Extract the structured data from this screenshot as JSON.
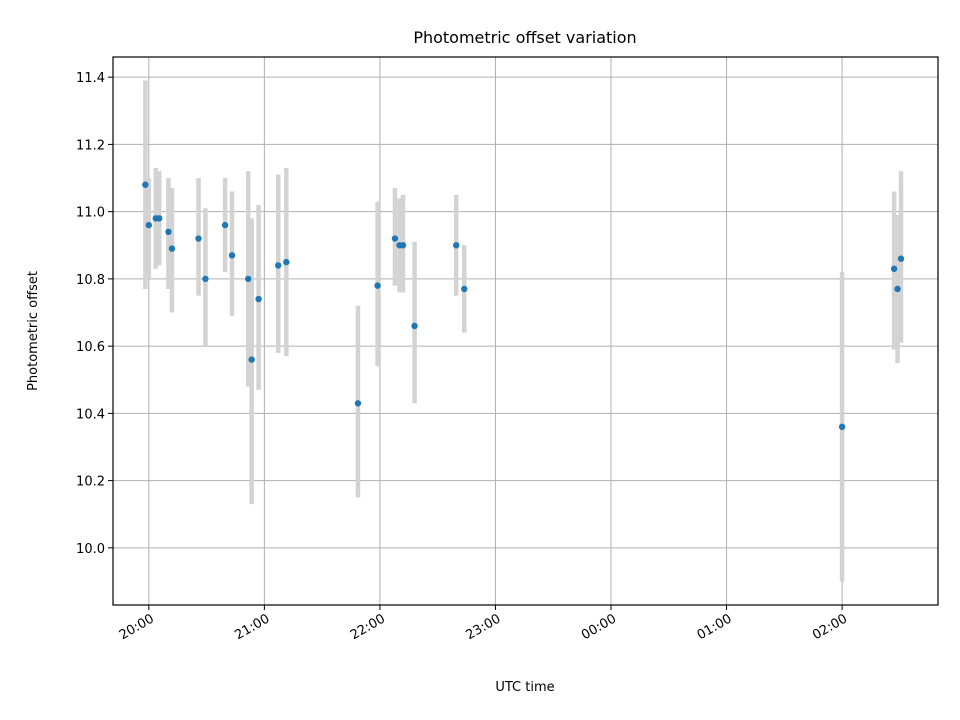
{
  "chart_data": {
    "type": "scatter",
    "title": "Photometric offset variation",
    "xlabel": "UTC time",
    "ylabel": "Photometric offset",
    "x_tick_labels": [
      "20:00",
      "21:00",
      "22:00",
      "23:00",
      "00:00",
      "01:00",
      "02:00"
    ],
    "x_ticks_hours": [
      0,
      1,
      2,
      3,
      4,
      5,
      6
    ],
    "y_ticks": [
      10.0,
      10.2,
      10.4,
      10.6,
      10.8,
      11.0,
      11.2,
      11.4
    ],
    "y_tick_labels": [
      "10.0",
      "10.2",
      "10.4",
      "10.6",
      "10.8",
      "11.0",
      "11.2",
      "11.4"
    ],
    "xlim_hours": [
      -0.31,
      6.83
    ],
    "ylim": [
      9.83,
      11.46
    ],
    "x_axis_start": "20:00 UTC",
    "grid": true,
    "marker_color": "#1f77b4",
    "errorbar_color": "#d3d3d3",
    "points": [
      {
        "t": -0.03,
        "y": 11.08,
        "lo": 10.77,
        "hi": 11.39
      },
      {
        "t": 0.0,
        "y": 10.96,
        "lo": 10.8,
        "hi": 11.1
      },
      {
        "t": 0.06,
        "y": 10.98,
        "lo": 10.83,
        "hi": 11.13
      },
      {
        "t": 0.09,
        "y": 10.98,
        "lo": 10.84,
        "hi": 11.12
      },
      {
        "t": 0.17,
        "y": 10.94,
        "lo": 10.77,
        "hi": 11.1
      },
      {
        "t": 0.2,
        "y": 10.89,
        "lo": 10.7,
        "hi": 11.07
      },
      {
        "t": 0.43,
        "y": 10.92,
        "lo": 10.75,
        "hi": 11.1
      },
      {
        "t": 0.49,
        "y": 10.8,
        "lo": 10.6,
        "hi": 11.01
      },
      {
        "t": 0.66,
        "y": 10.96,
        "lo": 10.82,
        "hi": 11.1
      },
      {
        "t": 0.72,
        "y": 10.87,
        "lo": 10.69,
        "hi": 11.06
      },
      {
        "t": 0.86,
        "y": 10.8,
        "lo": 10.48,
        "hi": 11.12
      },
      {
        "t": 0.89,
        "y": 10.56,
        "lo": 10.13,
        "hi": 10.98
      },
      {
        "t": 0.95,
        "y": 10.74,
        "lo": 10.47,
        "hi": 11.02
      },
      {
        "t": 1.12,
        "y": 10.84,
        "lo": 10.58,
        "hi": 11.11
      },
      {
        "t": 1.19,
        "y": 10.85,
        "lo": 10.57,
        "hi": 11.13
      },
      {
        "t": 1.81,
        "y": 10.43,
        "lo": 10.15,
        "hi": 10.72
      },
      {
        "t": 1.98,
        "y": 10.78,
        "lo": 10.54,
        "hi": 11.03
      },
      {
        "t": 2.13,
        "y": 10.92,
        "lo": 10.78,
        "hi": 11.07
      },
      {
        "t": 2.17,
        "y": 10.9,
        "lo": 10.76,
        "hi": 11.04
      },
      {
        "t": 2.2,
        "y": 10.9,
        "lo": 10.76,
        "hi": 11.05
      },
      {
        "t": 2.3,
        "y": 10.66,
        "lo": 10.43,
        "hi": 10.91
      },
      {
        "t": 2.66,
        "y": 10.9,
        "lo": 10.75,
        "hi": 11.05
      },
      {
        "t": 2.73,
        "y": 10.77,
        "lo": 10.64,
        "hi": 10.9
      },
      {
        "t": 6.0,
        "y": 10.36,
        "lo": 9.9,
        "hi": 10.82
      },
      {
        "t": 6.45,
        "y": 10.83,
        "lo": 10.59,
        "hi": 11.06
      },
      {
        "t": 6.48,
        "y": 10.77,
        "lo": 10.55,
        "hi": 10.99
      },
      {
        "t": 6.51,
        "y": 10.86,
        "lo": 10.61,
        "hi": 11.12
      }
    ]
  }
}
